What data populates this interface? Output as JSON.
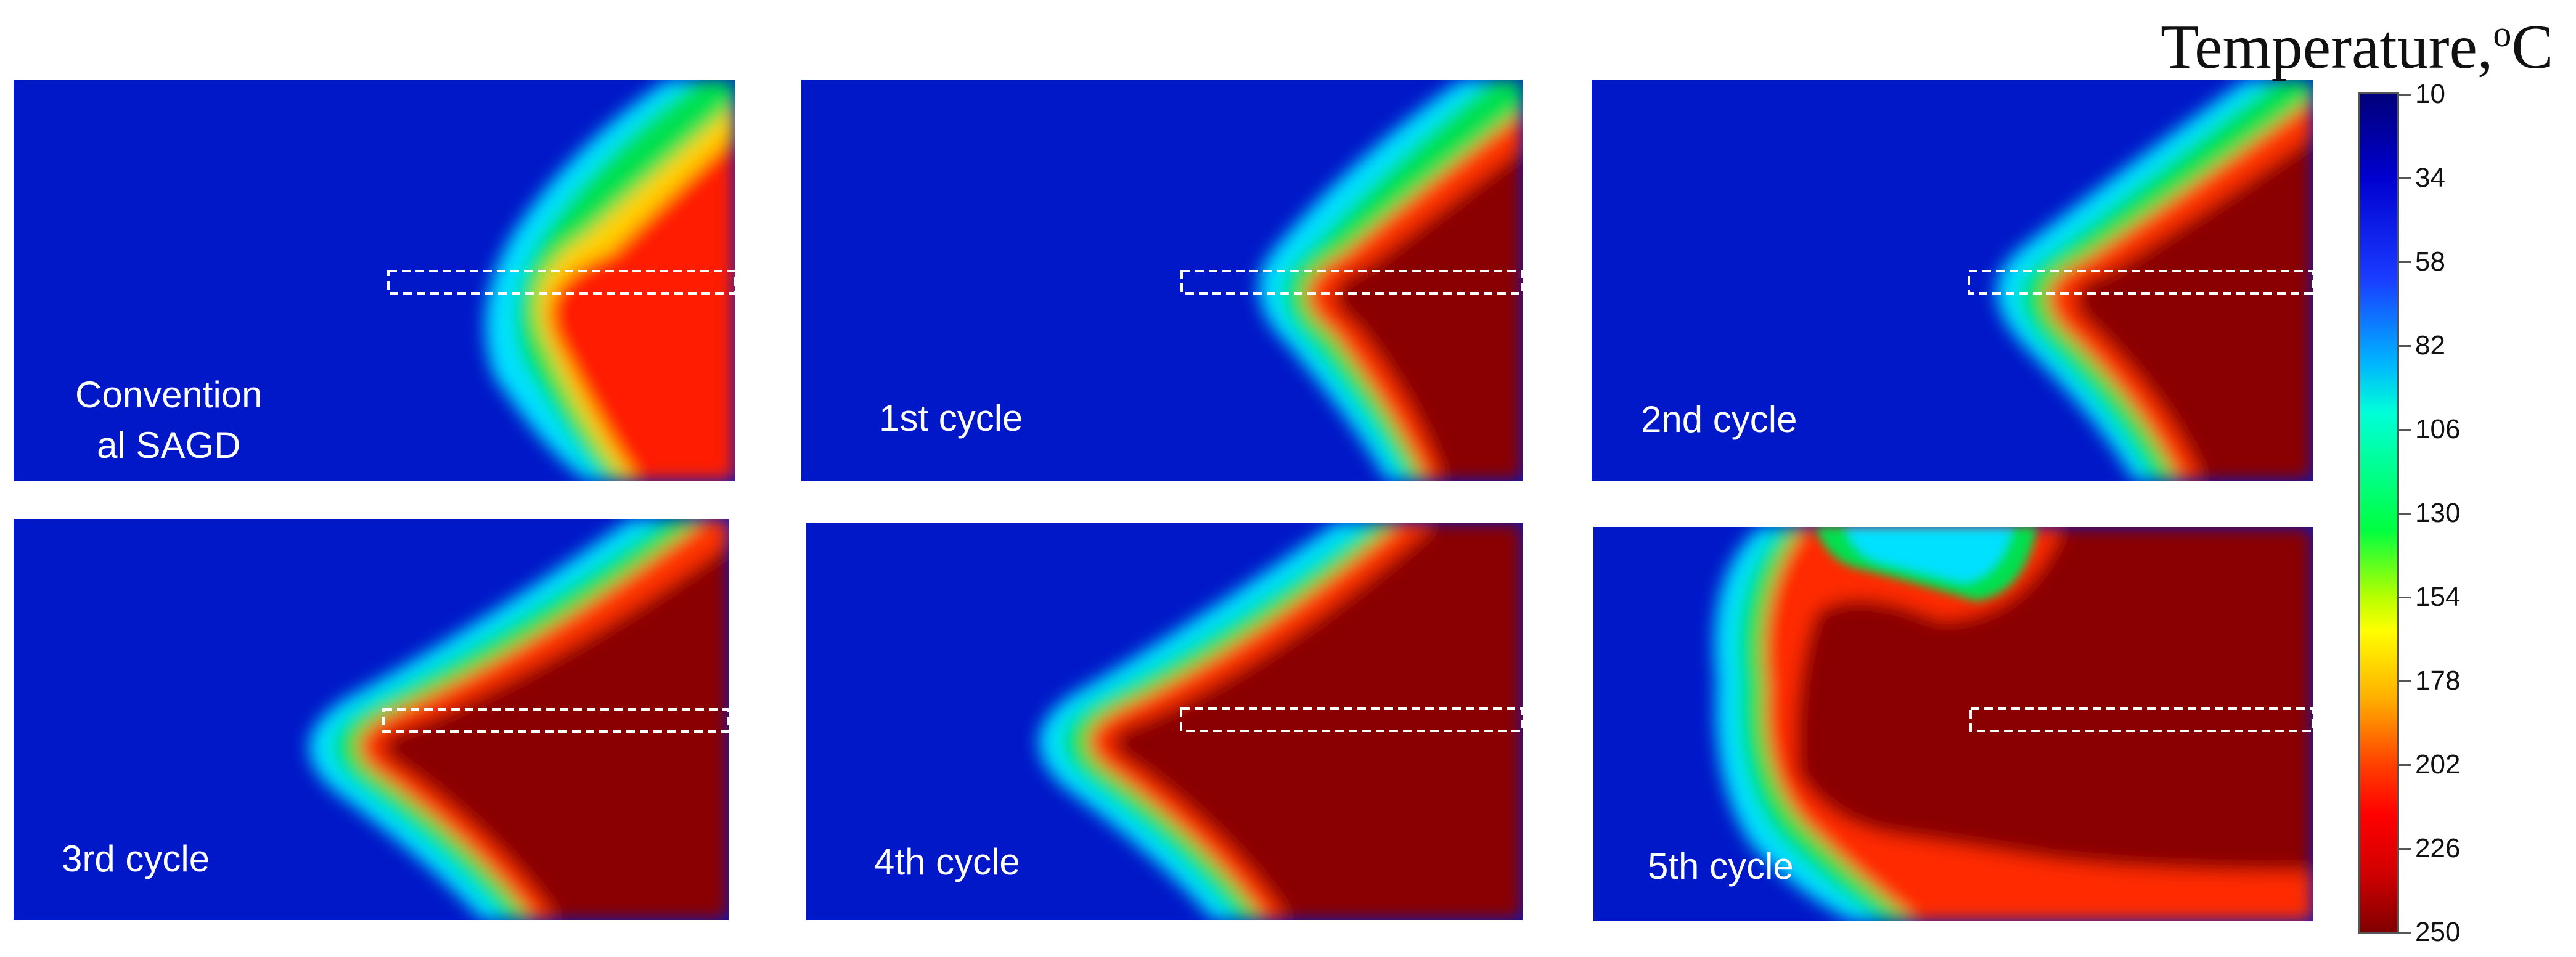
{
  "legend": {
    "title": "Temperature,",
    "unit_sup": "o",
    "unit": "C",
    "ticks": [
      "10",
      "34",
      "58",
      "82",
      "106",
      "130",
      "154",
      "178",
      "202",
      "226",
      "250"
    ]
  },
  "panels": [
    {
      "label": "Convention al SAGD",
      "line1": "Convention",
      "line2": "al SAGD"
    },
    {
      "label": "1st cycle"
    },
    {
      "label": "2nd cycle"
    },
    {
      "label": "3rd cycle"
    },
    {
      "label": "4th cycle"
    },
    {
      "label": "5th cycle"
    }
  ]
}
